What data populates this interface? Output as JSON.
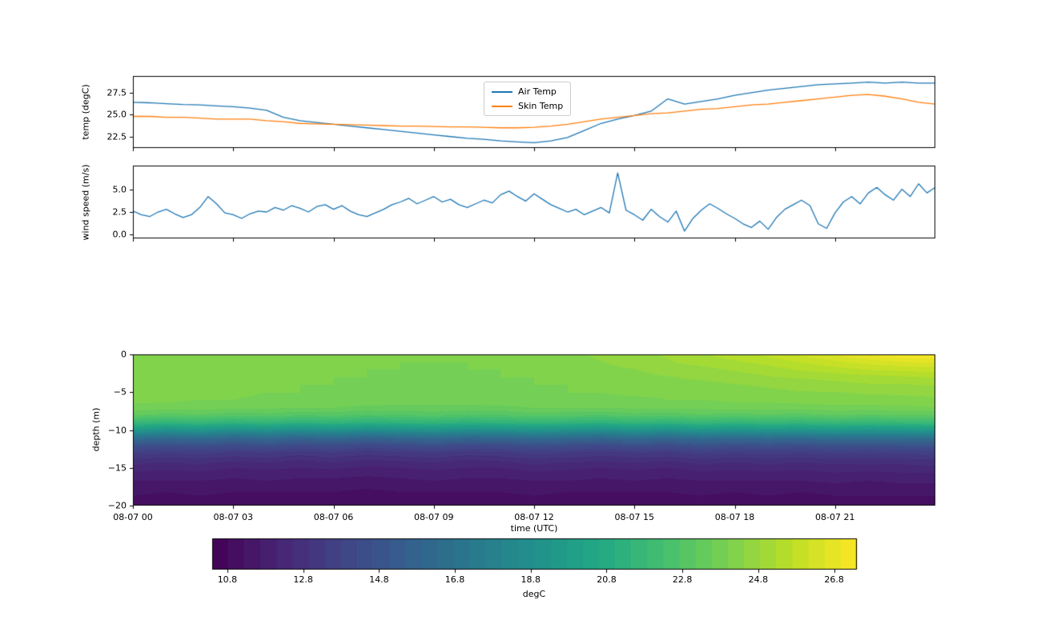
{
  "figure": {
    "background": "#ffffff"
  },
  "colors": {
    "air_temp": "#1f77b4",
    "skin_temp": "#ff7f0e",
    "wind": "#1f77b4",
    "axis": "#000000",
    "legend_border": "#cccccc",
    "viridis_stops": [
      "#440154",
      "#482475",
      "#414487",
      "#355f8d",
      "#2a788e",
      "#21918c",
      "#22a884",
      "#44bf70",
      "#7ad151",
      "#bddf26",
      "#fde725"
    ]
  },
  "time_axis": {
    "label": "time (UTC)",
    "range_hours": [
      0,
      24
    ],
    "tick_hours": [
      0,
      3,
      6,
      9,
      12,
      15,
      18,
      21
    ],
    "tick_labels": [
      "08-07 00",
      "08-07 03",
      "08-07 06",
      "08-07 09",
      "08-07 12",
      "08-07 15",
      "08-07 18",
      "08-07 21"
    ]
  },
  "chart_data": [
    {
      "type": "line",
      "ylabel": "temp (degC)",
      "ylim": [
        21.2,
        29.4
      ],
      "yticks": [
        22.5,
        25.0,
        27.5
      ],
      "ytick_labels": [
        "22.5",
        "25.0",
        "27.5"
      ],
      "x_hours_step": 0.5,
      "legend_position": "upper center",
      "series": [
        {
          "name": "Air Temp",
          "color": "#1f77b4",
          "values": [
            26.4,
            26.35,
            26.25,
            26.15,
            26.1,
            26.0,
            25.9,
            25.75,
            25.5,
            24.7,
            24.3,
            24.1,
            23.9,
            23.7,
            23.5,
            23.3,
            23.1,
            22.9,
            22.7,
            22.5,
            22.3,
            22.2,
            22.0,
            21.9,
            21.8,
            22.0,
            22.4,
            23.2,
            24.0,
            24.5,
            24.9,
            25.4,
            26.8,
            26.2,
            26.5,
            26.8,
            27.2,
            27.5,
            27.8,
            28.0,
            28.2,
            28.4,
            28.5,
            28.6,
            28.7,
            28.6,
            28.7,
            28.6,
            28.6
          ]
        },
        {
          "name": "Skin Temp",
          "color": "#ff7f0e",
          "values": [
            24.8,
            24.8,
            24.7,
            24.7,
            24.6,
            24.5,
            24.5,
            24.5,
            24.3,
            24.2,
            24.0,
            23.95,
            23.9,
            23.85,
            23.8,
            23.75,
            23.7,
            23.7,
            23.65,
            23.6,
            23.6,
            23.55,
            23.5,
            23.5,
            23.55,
            23.7,
            23.9,
            24.2,
            24.5,
            24.7,
            24.9,
            25.1,
            25.2,
            25.4,
            25.6,
            25.7,
            25.9,
            26.1,
            26.2,
            26.4,
            26.6,
            26.8,
            27.0,
            27.2,
            27.3,
            27.1,
            26.8,
            26.4,
            26.2
          ]
        }
      ]
    },
    {
      "type": "line",
      "ylabel": "wind speed (m/s)",
      "ylim": [
        -0.4,
        7.6
      ],
      "yticks": [
        0.0,
        2.5,
        5.0
      ],
      "ytick_labels": [
        "0.0",
        "2.5",
        "5.0"
      ],
      "x_hours_step": 0.25,
      "series": [
        {
          "name": "wind speed",
          "color": "#1f77b4",
          "values": [
            2.6,
            2.2,
            2.0,
            2.5,
            2.8,
            2.3,
            1.9,
            2.2,
            3.0,
            4.2,
            3.4,
            2.4,
            2.2,
            1.8,
            2.3,
            2.6,
            2.5,
            3.0,
            2.7,
            3.2,
            2.9,
            2.5,
            3.1,
            3.3,
            2.8,
            3.2,
            2.6,
            2.2,
            2.0,
            2.4,
            2.8,
            3.3,
            3.6,
            4.0,
            3.4,
            3.8,
            4.2,
            3.6,
            3.9,
            3.3,
            3.0,
            3.4,
            3.8,
            3.5,
            4.4,
            4.8,
            4.2,
            3.7,
            4.5,
            3.9,
            3.3,
            2.9,
            2.5,
            2.8,
            2.2,
            2.6,
            3.0,
            2.4,
            6.8,
            2.7,
            2.2,
            1.6,
            2.8,
            2.0,
            1.4,
            2.6,
            0.4,
            1.8,
            2.7,
            3.4,
            2.9,
            2.3,
            1.8,
            1.2,
            0.8,
            1.5,
            0.6,
            1.9,
            2.8,
            3.3,
            3.8,
            3.2,
            1.2,
            0.7,
            2.4,
            3.6,
            4.2,
            3.4,
            4.6,
            5.2,
            4.4,
            3.8,
            5.0,
            4.2,
            5.6,
            4.6,
            5.2
          ]
        }
      ]
    },
    {
      "type": "heatmap",
      "ylabel": "depth (m)",
      "ylim": [
        -20,
        0
      ],
      "yticks": [
        0,
        -5,
        -10,
        -15,
        -20
      ],
      "ytick_labels": [
        "0",
        "−5",
        "−10",
        "−15",
        "−20"
      ],
      "colormap": "viridis",
      "vmin": 10.4,
      "vmax": 27.4,
      "depths": [
        0,
        -1,
        -2,
        -3,
        -4,
        -5,
        -6,
        -7,
        -8,
        -9,
        -10,
        -11,
        -12,
        -13,
        -14,
        -15,
        -16,
        -17,
        -18,
        -19,
        -20
      ],
      "hours": [
        0,
        1,
        2,
        3,
        4,
        5,
        6,
        7,
        8,
        9,
        10,
        11,
        12,
        13,
        14,
        15,
        16,
        17,
        18,
        19,
        20,
        21,
        22,
        23,
        24
      ],
      "values": [
        [
          24.4,
          24.4,
          24.3,
          24.3,
          24.2,
          24.2,
          24.1,
          24.1,
          24.0,
          24.0,
          24.1,
          24.1,
          24.2,
          24.3,
          24.5,
          24.7,
          24.9,
          25.2,
          25.5,
          25.8,
          26.2,
          26.6,
          27.0,
          27.3,
          27.4
        ],
        [
          24.4,
          24.4,
          24.3,
          24.3,
          24.2,
          24.2,
          24.1,
          24.1,
          24.0,
          24.0,
          24.0,
          24.1,
          24.2,
          24.3,
          24.4,
          24.6,
          24.8,
          25.0,
          25.2,
          25.4,
          25.7,
          26.0,
          26.3,
          26.5,
          26.6
        ],
        [
          24.4,
          24.3,
          24.3,
          24.2,
          24.2,
          24.1,
          24.1,
          24.0,
          24.0,
          23.9,
          24.0,
          24.0,
          24.1,
          24.2,
          24.3,
          24.4,
          24.6,
          24.7,
          24.9,
          25.1,
          25.3,
          25.5,
          25.7,
          25.8,
          25.9
        ],
        [
          24.3,
          24.3,
          24.2,
          24.2,
          24.1,
          24.1,
          24.0,
          24.0,
          23.9,
          23.9,
          23.9,
          24.0,
          24.0,
          24.1,
          24.2,
          24.3,
          24.4,
          24.5,
          24.6,
          24.8,
          24.9,
          25.0,
          25.1,
          25.2,
          25.3
        ],
        [
          24.3,
          24.2,
          24.2,
          24.1,
          24.1,
          24.0,
          24.0,
          23.9,
          23.9,
          23.8,
          23.9,
          23.9,
          24.0,
          24.0,
          24.1,
          24.2,
          24.3,
          24.3,
          24.4,
          24.5,
          24.6,
          24.7,
          24.8,
          24.8,
          24.9
        ],
        [
          24.2,
          24.2,
          24.1,
          24.1,
          24.0,
          24.0,
          23.9,
          23.9,
          23.8,
          23.8,
          23.8,
          23.9,
          23.9,
          24.0,
          24.0,
          24.1,
          24.1,
          24.2,
          24.2,
          24.3,
          24.4,
          24.4,
          24.5,
          24.5,
          24.6
        ],
        [
          24.1,
          24.1,
          24.0,
          24.0,
          23.9,
          23.9,
          23.8,
          23.8,
          23.7,
          23.7,
          23.7,
          23.8,
          23.8,
          23.8,
          23.9,
          23.9,
          24.0,
          24.0,
          24.1,
          24.1,
          24.2,
          24.2,
          24.2,
          24.3,
          24.3
        ],
        [
          23.9,
          23.8,
          23.8,
          23.7,
          23.7,
          23.6,
          23.6,
          23.5,
          23.5,
          23.5,
          23.5,
          23.5,
          23.6,
          23.6,
          23.6,
          23.7,
          23.7,
          23.7,
          23.8,
          23.8,
          23.8,
          23.9,
          23.9,
          23.9,
          24.0
        ],
        [
          23.2,
          23.0,
          23.1,
          22.9,
          23.0,
          22.8,
          22.9,
          22.7,
          22.8,
          22.9,
          22.7,
          22.8,
          23.0,
          22.9,
          22.8,
          23.0,
          22.9,
          23.1,
          23.0,
          23.1,
          23.0,
          23.2,
          23.1,
          23.2,
          23.2
        ],
        [
          21.8,
          21.5,
          21.7,
          21.4,
          21.6,
          21.3,
          21.5,
          21.2,
          21.4,
          21.5,
          21.3,
          21.4,
          21.6,
          21.5,
          21.3,
          21.6,
          21.4,
          21.7,
          21.5,
          21.7,
          21.6,
          21.8,
          21.7,
          21.8,
          21.9
        ],
        [
          19.5,
          19.0,
          19.3,
          18.8,
          19.1,
          18.7,
          19.0,
          18.6,
          18.9,
          19.1,
          18.8,
          18.9,
          19.2,
          19.0,
          18.8,
          19.2,
          18.9,
          19.3,
          19.1,
          19.3,
          19.2,
          19.5,
          19.3,
          19.4,
          19.6
        ],
        [
          16.8,
          16.4,
          16.6,
          16.2,
          16.5,
          16.1,
          16.4,
          16.0,
          16.3,
          16.5,
          16.2,
          16.3,
          16.6,
          16.4,
          16.2,
          16.6,
          16.3,
          16.7,
          16.5,
          16.7,
          16.6,
          16.8,
          16.7,
          16.8,
          16.9
        ],
        [
          14.8,
          14.5,
          14.7,
          14.4,
          14.6,
          14.3,
          14.5,
          14.2,
          14.4,
          14.6,
          14.3,
          14.4,
          14.7,
          14.5,
          14.3,
          14.6,
          14.4,
          14.8,
          14.6,
          14.7,
          14.6,
          14.8,
          14.7,
          14.8,
          14.9
        ],
        [
          13.6,
          13.4,
          13.5,
          13.3,
          13.4,
          13.2,
          13.4,
          13.1,
          13.3,
          13.4,
          13.2,
          13.3,
          13.5,
          13.4,
          13.2,
          13.4,
          13.3,
          13.6,
          13.4,
          13.5,
          13.4,
          13.6,
          13.5,
          13.6,
          13.6
        ],
        [
          12.8,
          12.7,
          12.8,
          12.6,
          12.7,
          12.5,
          12.7,
          12.5,
          12.6,
          12.7,
          12.5,
          12.6,
          12.8,
          12.7,
          12.6,
          12.7,
          12.6,
          12.8,
          12.7,
          12.8,
          12.7,
          12.8,
          12.8,
          12.8,
          12.9
        ],
        [
          12.3,
          12.2,
          12.3,
          12.1,
          12.2,
          12.1,
          12.2,
          12.0,
          12.1,
          12.2,
          12.1,
          12.1,
          12.3,
          12.2,
          12.1,
          12.2,
          12.1,
          12.3,
          12.2,
          12.3,
          12.2,
          12.3,
          12.3,
          12.3,
          12.4
        ],
        [
          11.9,
          11.9,
          11.9,
          11.8,
          11.9,
          11.8,
          11.8,
          11.7,
          11.8,
          11.9,
          11.8,
          11.8,
          11.9,
          11.9,
          11.8,
          11.9,
          11.8,
          11.9,
          11.9,
          11.9,
          11.9,
          12.0,
          11.9,
          12.0,
          12.0
        ],
        [
          11.6,
          11.6,
          11.6,
          11.5,
          11.6,
          11.5,
          11.5,
          11.5,
          11.5,
          11.6,
          11.5,
          11.5,
          11.6,
          11.6,
          11.5,
          11.6,
          11.5,
          11.6,
          11.6,
          11.6,
          11.6,
          11.7,
          11.6,
          11.7,
          11.7
        ],
        [
          11.4,
          11.3,
          11.4,
          11.3,
          11.3,
          11.3,
          11.3,
          11.2,
          11.3,
          11.3,
          11.3,
          11.3,
          11.4,
          11.3,
          11.3,
          11.3,
          11.3,
          11.4,
          11.3,
          11.4,
          11.3,
          11.4,
          11.4,
          11.4,
          11.4
        ],
        [
          11.2,
          11.1,
          11.2,
          11.1,
          11.1,
          11.1,
          11.1,
          11.0,
          11.1,
          11.1,
          11.1,
          11.1,
          11.2,
          11.1,
          11.1,
          11.1,
          11.1,
          11.2,
          11.1,
          11.2,
          11.1,
          11.2,
          11.2,
          11.2,
          11.2
        ],
        [
          11.0,
          11.0,
          11.0,
          10.9,
          11.0,
          10.9,
          10.9,
          10.9,
          10.9,
          11.0,
          10.9,
          10.9,
          11.0,
          11.0,
          10.9,
          11.0,
          10.9,
          11.0,
          11.0,
          11.0,
          11.0,
          11.1,
          11.0,
          11.1,
          11.1
        ]
      ]
    },
    {
      "type": "colorbar",
      "label": "degC",
      "vmin": 10.4,
      "vmax": 27.4,
      "levels": 40,
      "ticks": [
        10.8,
        12.8,
        14.8,
        16.8,
        18.8,
        20.8,
        22.8,
        24.8,
        26.8
      ],
      "tick_labels": [
        "10.8",
        "12.8",
        "14.8",
        "16.8",
        "18.8",
        "20.8",
        "22.8",
        "24.8",
        "26.8"
      ]
    }
  ]
}
